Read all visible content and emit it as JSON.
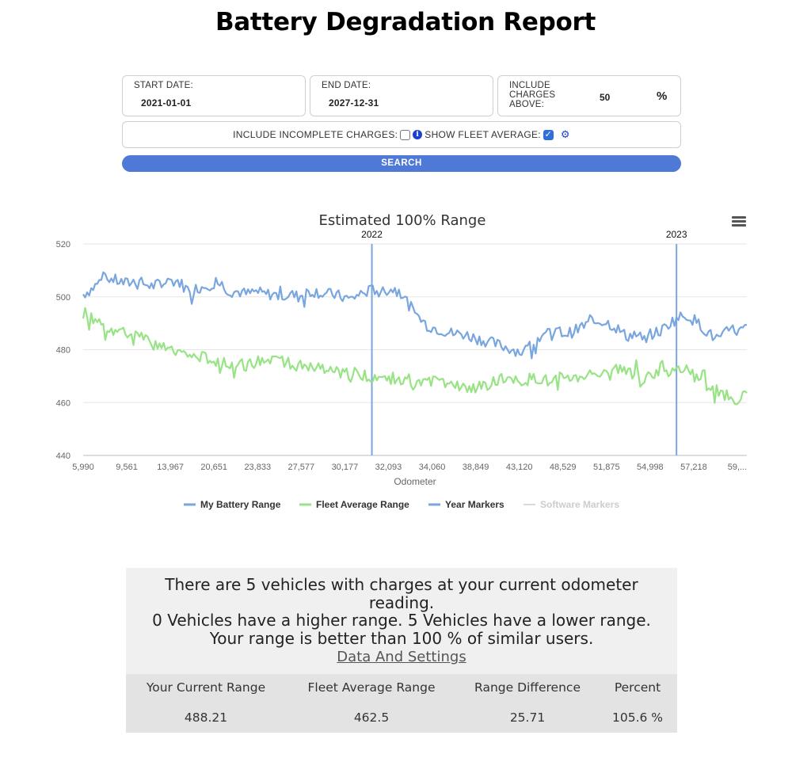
{
  "page": {
    "title": "Battery Degradation Report"
  },
  "filters": {
    "start_date_label": "START DATE:",
    "start_date_value": "2021-01-01",
    "end_date_label": "END DATE:",
    "end_date_value": "2027-12-31",
    "threshold_label_1": "INCLUDE",
    "threshold_label_2": "CHARGES",
    "threshold_label_3": "ABOVE:",
    "threshold_value": "50",
    "threshold_unit": "%",
    "incomplete_label": "INCLUDE INCOMPLETE CHARGES:",
    "incomplete_checked": false,
    "fleet_avg_label": "SHOW FLEET AVERAGE:",
    "fleet_avg_checked": true,
    "search_label": "SEARCH",
    "info_icon": "info-icon",
    "settings_icon": "gear-icon"
  },
  "chart_data": {
    "type": "line",
    "title": "Estimated 100% Range",
    "xlabel": "Odometer",
    "ylabel": "",
    "ylim": [
      440,
      520
    ],
    "yticks": [
      440,
      460,
      480,
      500,
      520
    ],
    "x_tick_labels": [
      "5,990",
      "9,561",
      "13,967",
      "20,651",
      "23,833",
      "27,577",
      "30,177",
      "32,093",
      "34,060",
      "38,849",
      "43,120",
      "48,529",
      "51,875",
      "54,998",
      "57,218",
      "59,..."
    ],
    "grid": true,
    "legend_position": "bottom",
    "year_markers": [
      {
        "label": "2022",
        "position_index": 0.435
      },
      {
        "label": "2023",
        "position_index": 0.894
      }
    ],
    "series": [
      {
        "name": "My Battery Range",
        "color": "#7aa6df",
        "values": [
          501,
          503,
          506,
          507,
          506,
          505,
          506,
          505,
          504,
          505,
          506,
          506,
          503,
          503,
          504,
          505,
          505,
          502,
          502,
          501,
          502,
          501,
          501,
          500,
          501,
          500,
          502,
          502,
          501,
          501,
          500,
          499,
          501,
          502,
          503,
          502,
          503,
          501,
          496,
          492,
          489,
          488,
          487,
          486,
          486,
          485,
          484,
          483,
          482,
          481,
          480,
          479,
          482,
          485,
          486,
          487,
          486,
          487,
          489,
          490,
          491,
          490,
          488,
          485,
          486,
          484,
          486,
          487,
          490,
          492,
          493,
          491,
          488,
          485,
          484,
          488,
          487,
          488
        ]
      },
      {
        "name": "Fleet Average Range",
        "color": "#98e385",
        "values": [
          494,
          492,
          490,
          488,
          487,
          486,
          485,
          484,
          482,
          481,
          480,
          479,
          478,
          477,
          477,
          476,
          476,
          475,
          475,
          474,
          475,
          476,
          477,
          476,
          475,
          474,
          473,
          473,
          472,
          472,
          471,
          471,
          471,
          470,
          470,
          469,
          469,
          468,
          467,
          467,
          468,
          468,
          467,
          466,
          466,
          465,
          466,
          467,
          468,
          469,
          468,
          468,
          469,
          469,
          468,
          469,
          470,
          469,
          470,
          471,
          472,
          472,
          473,
          472,
          470,
          469,
          470,
          471,
          472,
          473,
          472,
          470,
          467,
          465,
          464,
          462,
          461,
          463
        ]
      }
    ],
    "legend": [
      {
        "name": "My Battery Range",
        "color": "#7aa6df",
        "active": true
      },
      {
        "name": "Fleet Average Range",
        "color": "#98e385",
        "active": true
      },
      {
        "name": "Year Markers",
        "color": "#7aa6df",
        "active": true
      },
      {
        "name": "Software Markers",
        "color": "#cccccc",
        "active": false
      }
    ]
  },
  "summary": {
    "line1": "There are 5 vehicles with charges at your current odometer",
    "line2": "reading.",
    "line3": "0 Vehicles have a higher range. 5 Vehicles have a lower range.",
    "line4": "Your range is better than 100 % of similar users.",
    "link": "Data And Settings",
    "headers": [
      "Your Current Range",
      "Fleet Average Range",
      "Range Difference",
      "Percent"
    ],
    "values": [
      "488.21",
      "462.5",
      "25.71",
      "105.6 %"
    ]
  }
}
